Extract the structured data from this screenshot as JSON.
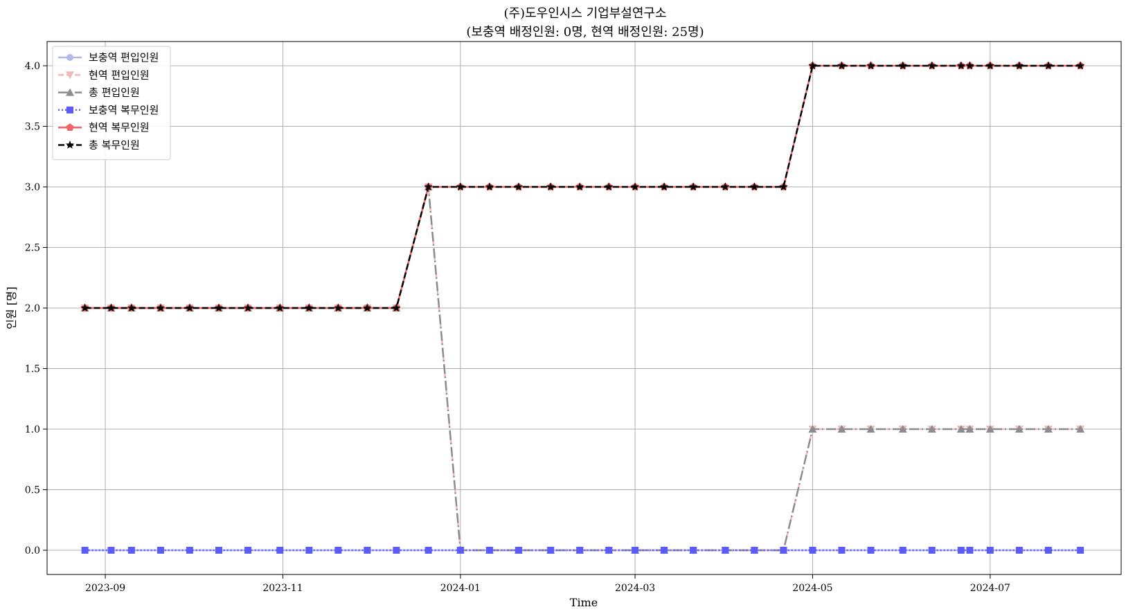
{
  "chart_data": {
    "type": "line",
    "title_line1": "(주)도우인시스 기업부설연구소",
    "title_line2": "(보충역 배정인원: 0명, 현역 배정인원: 25명)",
    "xlabel": "Time",
    "ylabel": "인원 [명]",
    "ylim": [
      -0.2,
      4.2
    ],
    "xlim": [
      "2023-08-12",
      "2024-08-15"
    ],
    "grid": true,
    "legend_position": "top-left",
    "x_ticks": [
      {
        "date": "2023-09-01",
        "label": "2023-09"
      },
      {
        "date": "2023-11-01",
        "label": "2023-11"
      },
      {
        "date": "2024-01-01",
        "label": "2024-01"
      },
      {
        "date": "2024-03-01",
        "label": "2024-03"
      },
      {
        "date": "2024-05-01",
        "label": "2024-05"
      },
      {
        "date": "2024-07-01",
        "label": "2024-07"
      }
    ],
    "y_ticks": [
      {
        "value": 0.0,
        "label": "0.0"
      },
      {
        "value": 0.5,
        "label": "0.5"
      },
      {
        "value": 1.0,
        "label": "1.0"
      },
      {
        "value": 1.5,
        "label": "1.5"
      },
      {
        "value": 2.0,
        "label": "2.0"
      },
      {
        "value": 2.5,
        "label": "2.5"
      },
      {
        "value": 3.0,
        "label": "3.0"
      },
      {
        "value": 3.5,
        "label": "3.5"
      },
      {
        "value": 4.0,
        "label": "4.0"
      }
    ],
    "x": [
      "2023-08-25",
      "2023-09-03",
      "2023-09-10",
      "2023-09-20",
      "2023-09-30",
      "2023-10-10",
      "2023-10-20",
      "2023-10-31",
      "2023-11-10",
      "2023-11-20",
      "2023-11-30",
      "2023-12-10",
      "2023-12-21",
      "2024-01-01",
      "2024-01-11",
      "2024-01-21",
      "2024-02-01",
      "2024-02-11",
      "2024-02-21",
      "2024-03-01",
      "2024-03-11",
      "2024-03-21",
      "2024-04-01",
      "2024-04-11",
      "2024-04-21",
      "2024-05-01",
      "2024-05-11",
      "2024-05-21",
      "2024-06-01",
      "2024-06-11",
      "2024-06-21",
      "2024-06-24",
      "2024-07-01",
      "2024-07-11",
      "2024-07-21",
      "2024-08-01"
    ],
    "series": [
      {
        "name": "보충역 편입인원",
        "color": "#b3b8ea",
        "marker": "circle",
        "dash": "",
        "width": 2.5,
        "values": [
          0,
          0,
          0,
          0,
          0,
          0,
          0,
          0,
          0,
          0,
          0,
          0,
          0,
          0,
          0,
          0,
          0,
          0,
          0,
          0,
          0,
          0,
          0,
          0,
          0,
          0,
          0,
          0,
          0,
          0,
          0,
          0,
          0,
          0,
          0,
          0
        ]
      },
      {
        "name": "현역 편입인원",
        "color": "#f0b9b9",
        "marker": "triangle-down",
        "dash": "8,4",
        "width": 2.5,
        "values": [
          2,
          2,
          2,
          2,
          2,
          2,
          2,
          2,
          2,
          2,
          2,
          2,
          3,
          0,
          0,
          0,
          0,
          0,
          0,
          0,
          0,
          0,
          0,
          0,
          0,
          1,
          1,
          1,
          1,
          1,
          1,
          1,
          1,
          1,
          1,
          1
        ]
      },
      {
        "name": "총 편입인원",
        "color": "#8c8c8c",
        "marker": "triangle-up",
        "dash": "14,4,2,4",
        "width": 2.5,
        "values": [
          2,
          2,
          2,
          2,
          2,
          2,
          2,
          2,
          2,
          2,
          2,
          2,
          3,
          0,
          0,
          0,
          0,
          0,
          0,
          0,
          0,
          0,
          0,
          0,
          0,
          1,
          1,
          1,
          1,
          1,
          1,
          1,
          1,
          1,
          1,
          1
        ]
      },
      {
        "name": "보충역 복무인원",
        "color": "#5b5bf5",
        "marker": "square",
        "dash": "2,3",
        "width": 2.5,
        "values": [
          0,
          0,
          0,
          0,
          0,
          0,
          0,
          0,
          0,
          0,
          0,
          0,
          0,
          0,
          0,
          0,
          0,
          0,
          0,
          0,
          0,
          0,
          0,
          0,
          0,
          0,
          0,
          0,
          0,
          0,
          0,
          0,
          0,
          0,
          0,
          0
        ]
      },
      {
        "name": "현역 복무인원",
        "color": "#f06464",
        "marker": "pentagon",
        "dash": "",
        "width": 2.5,
        "values": [
          2,
          2,
          2,
          2,
          2,
          2,
          2,
          2,
          2,
          2,
          2,
          2,
          3,
          3,
          3,
          3,
          3,
          3,
          3,
          3,
          3,
          3,
          3,
          3,
          3,
          4,
          4,
          4,
          4,
          4,
          4,
          4,
          4,
          4,
          4,
          4
        ]
      },
      {
        "name": "총 복무인원",
        "color": "#000000",
        "marker": "star",
        "dash": "9,4",
        "width": 2.5,
        "values": [
          2,
          2,
          2,
          2,
          2,
          2,
          2,
          2,
          2,
          2,
          2,
          2,
          3,
          3,
          3,
          3,
          3,
          3,
          3,
          3,
          3,
          3,
          3,
          3,
          3,
          4,
          4,
          4,
          4,
          4,
          4,
          4,
          4,
          4,
          4,
          4
        ]
      }
    ]
  }
}
